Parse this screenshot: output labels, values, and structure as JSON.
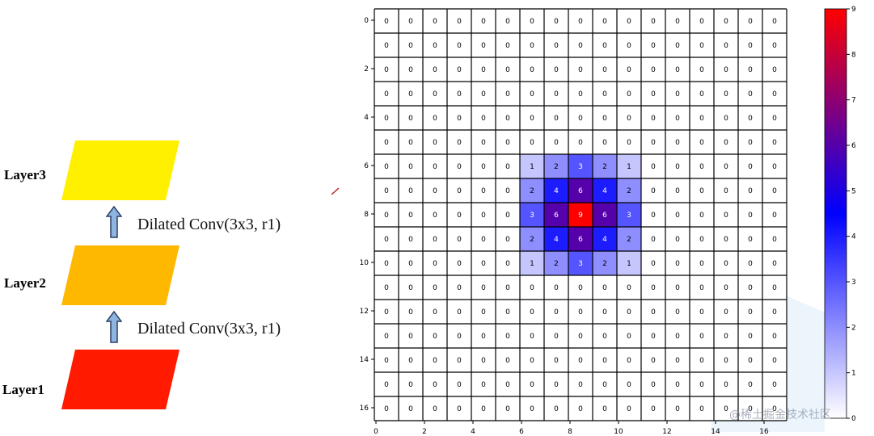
{
  "diagram": {
    "layers": [
      {
        "label": "Layer3",
        "color": "#FFF000"
      },
      {
        "label": "Layer2",
        "color": "#FFB800"
      },
      {
        "label": "Layer1",
        "color": "#FF1A00"
      }
    ],
    "convs": [
      {
        "label": "Dilated Conv(3x3, r1)"
      },
      {
        "label": "Dilated Conv(3x3, r1)"
      }
    ],
    "arrow_color": "#8FB4E0"
  },
  "watermark": "@稀土掘金技术社区",
  "chart_data": {
    "type": "heatmap",
    "rows": 17,
    "cols": 17,
    "values": [
      [
        0,
        0,
        0,
        0,
        0,
        0,
        0,
        0,
        0,
        0,
        0,
        0,
        0,
        0,
        0,
        0,
        0
      ],
      [
        0,
        0,
        0,
        0,
        0,
        0,
        0,
        0,
        0,
        0,
        0,
        0,
        0,
        0,
        0,
        0,
        0
      ],
      [
        0,
        0,
        0,
        0,
        0,
        0,
        0,
        0,
        0,
        0,
        0,
        0,
        0,
        0,
        0,
        0,
        0
      ],
      [
        0,
        0,
        0,
        0,
        0,
        0,
        0,
        0,
        0,
        0,
        0,
        0,
        0,
        0,
        0,
        0,
        0
      ],
      [
        0,
        0,
        0,
        0,
        0,
        0,
        0,
        0,
        0,
        0,
        0,
        0,
        0,
        0,
        0,
        0,
        0
      ],
      [
        0,
        0,
        0,
        0,
        0,
        0,
        0,
        0,
        0,
        0,
        0,
        0,
        0,
        0,
        0,
        0,
        0
      ],
      [
        0,
        0,
        0,
        0,
        0,
        0,
        1,
        2,
        3,
        2,
        1,
        0,
        0,
        0,
        0,
        0,
        0
      ],
      [
        0,
        0,
        0,
        0,
        0,
        0,
        2,
        4,
        6,
        4,
        2,
        0,
        0,
        0,
        0,
        0,
        0
      ],
      [
        0,
        0,
        0,
        0,
        0,
        0,
        3,
        6,
        9,
        6,
        3,
        0,
        0,
        0,
        0,
        0,
        0
      ],
      [
        0,
        0,
        0,
        0,
        0,
        0,
        2,
        4,
        6,
        4,
        2,
        0,
        0,
        0,
        0,
        0,
        0
      ],
      [
        0,
        0,
        0,
        0,
        0,
        0,
        1,
        2,
        3,
        2,
        1,
        0,
        0,
        0,
        0,
        0,
        0
      ],
      [
        0,
        0,
        0,
        0,
        0,
        0,
        0,
        0,
        0,
        0,
        0,
        0,
        0,
        0,
        0,
        0,
        0
      ],
      [
        0,
        0,
        0,
        0,
        0,
        0,
        0,
        0,
        0,
        0,
        0,
        0,
        0,
        0,
        0,
        0,
        0
      ],
      [
        0,
        0,
        0,
        0,
        0,
        0,
        0,
        0,
        0,
        0,
        0,
        0,
        0,
        0,
        0,
        0,
        0
      ],
      [
        0,
        0,
        0,
        0,
        0,
        0,
        0,
        0,
        0,
        0,
        0,
        0,
        0,
        0,
        0,
        0,
        0
      ],
      [
        0,
        0,
        0,
        0,
        0,
        0,
        0,
        0,
        0,
        0,
        0,
        0,
        0,
        0,
        0,
        0,
        0
      ],
      [
        0,
        0,
        0,
        0,
        0,
        0,
        0,
        0,
        0,
        0,
        0,
        0,
        0,
        0,
        0,
        0,
        0
      ]
    ],
    "x_ticks": [
      "0",
      "2",
      "4",
      "6",
      "8",
      "10",
      "12",
      "14",
      "16"
    ],
    "y_ticks": [
      "0",
      "2",
      "4",
      "6",
      "8",
      "10",
      "12",
      "14",
      "16"
    ],
    "colorbar_ticks": [
      "0",
      "1",
      "2",
      "3",
      "4",
      "5",
      "6",
      "7",
      "8",
      "9"
    ],
    "vmin": 0,
    "vmax": 9,
    "colormap": [
      "#ffffff",
      "#0000ff",
      "#ff0000"
    ],
    "grid": true
  }
}
